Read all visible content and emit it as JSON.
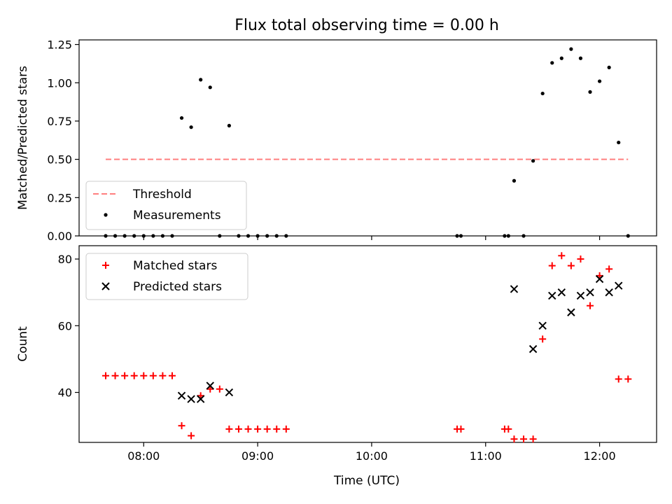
{
  "figure": {
    "title": "Flux total observing time = 0.00 h",
    "xlabel": "Time (UTC)"
  },
  "chart_data": [
    {
      "type": "scatter",
      "ylabel": "Matched/Predicted stars",
      "ylim": [
        0,
        1.28
      ],
      "xlim": [
        "07:26",
        "12:30"
      ],
      "yticks": [
        0.0,
        0.25,
        0.5,
        0.75,
        1.0,
        1.25
      ],
      "ytick_labels": [
        "0.00",
        "0.25",
        "0.50",
        "0.75",
        "1.00",
        "1.25"
      ],
      "legend_position": "lower-left",
      "grid": false,
      "threshold": {
        "name": "Threshold",
        "y": 0.5,
        "x": [
          "07:40",
          "12:15"
        ],
        "color": "#ff7f7f",
        "style": "dashed"
      },
      "series": [
        {
          "name": "Measurements",
          "color": "#000000",
          "marker": "dot",
          "x": [
            "07:40",
            "07:45",
            "07:50",
            "07:55",
            "08:00",
            "08:05",
            "08:10",
            "08:15",
            "08:20",
            "08:25",
            "08:30",
            "08:35",
            "08:40",
            "08:45",
            "08:50",
            "08:55",
            "09:00",
            "09:05",
            "09:10",
            "09:15",
            "10:45",
            "10:47",
            "11:10",
            "11:12",
            "11:15",
            "11:20",
            "11:25",
            "11:30",
            "11:35",
            "11:40",
            "11:45",
            "11:50",
            "11:55",
            "12:00",
            "12:05",
            "12:10",
            "12:15"
          ],
          "y": [
            0,
            0,
            0,
            0,
            0,
            0,
            0,
            0,
            0.77,
            0.71,
            1.02,
            0.97,
            0,
            0.72,
            0,
            0,
            0,
            0,
            0,
            0,
            0,
            0,
            0,
            0,
            0.36,
            0,
            0.49,
            0.93,
            1.13,
            1.16,
            1.22,
            1.16,
            0.94,
            1.01,
            1.1,
            0.61,
            0
          ]
        }
      ]
    },
    {
      "type": "scatter",
      "ylabel": "Count",
      "ylim": [
        25,
        84
      ],
      "xlim": [
        "07:26",
        "12:30"
      ],
      "yticks": [
        40,
        60,
        80
      ],
      "ytick_labels": [
        "40",
        "60",
        "80"
      ],
      "xticks": [
        "08:00",
        "09:00",
        "10:00",
        "11:00",
        "12:00"
      ],
      "xtick_labels": [
        "08:00",
        "09:00",
        "10:00",
        "11:00",
        "12:00"
      ],
      "legend_position": "upper-left",
      "grid": false,
      "series": [
        {
          "name": "Matched stars",
          "color": "#ff0000",
          "marker": "plus",
          "x": [
            "07:40",
            "07:45",
            "07:50",
            "07:55",
            "08:00",
            "08:05",
            "08:10",
            "08:15",
            "08:20",
            "08:25",
            "08:30",
            "08:35",
            "08:40",
            "08:45",
            "08:50",
            "08:55",
            "09:00",
            "09:05",
            "09:10",
            "09:15",
            "10:45",
            "10:47",
            "11:10",
            "11:12",
            "11:15",
            "11:20",
            "11:25",
            "11:30",
            "11:35",
            "11:40",
            "11:45",
            "11:50",
            "11:55",
            "12:00",
            "12:05",
            "12:10",
            "12:15"
          ],
          "y": [
            45,
            45,
            45,
            45,
            45,
            45,
            45,
            45,
            30,
            27,
            39,
            41,
            41,
            29,
            29,
            29,
            29,
            29,
            29,
            29,
            29,
            29,
            29,
            29,
            26,
            26,
            26,
            56,
            78,
            81,
            78,
            80,
            66,
            75,
            77,
            44,
            44
          ]
        },
        {
          "name": "Predicted stars",
          "color": "#000000",
          "marker": "x",
          "x": [
            "08:20",
            "08:25",
            "08:30",
            "08:35",
            "08:45",
            "11:15",
            "11:25",
            "11:30",
            "11:35",
            "11:40",
            "11:45",
            "11:50",
            "11:55",
            "12:00",
            "12:05",
            "12:10"
          ],
          "y": [
            39,
            38,
            38,
            42,
            40,
            71,
            53,
            60,
            69,
            70,
            64,
            69,
            70,
            74,
            70,
            72
          ]
        }
      ]
    }
  ]
}
